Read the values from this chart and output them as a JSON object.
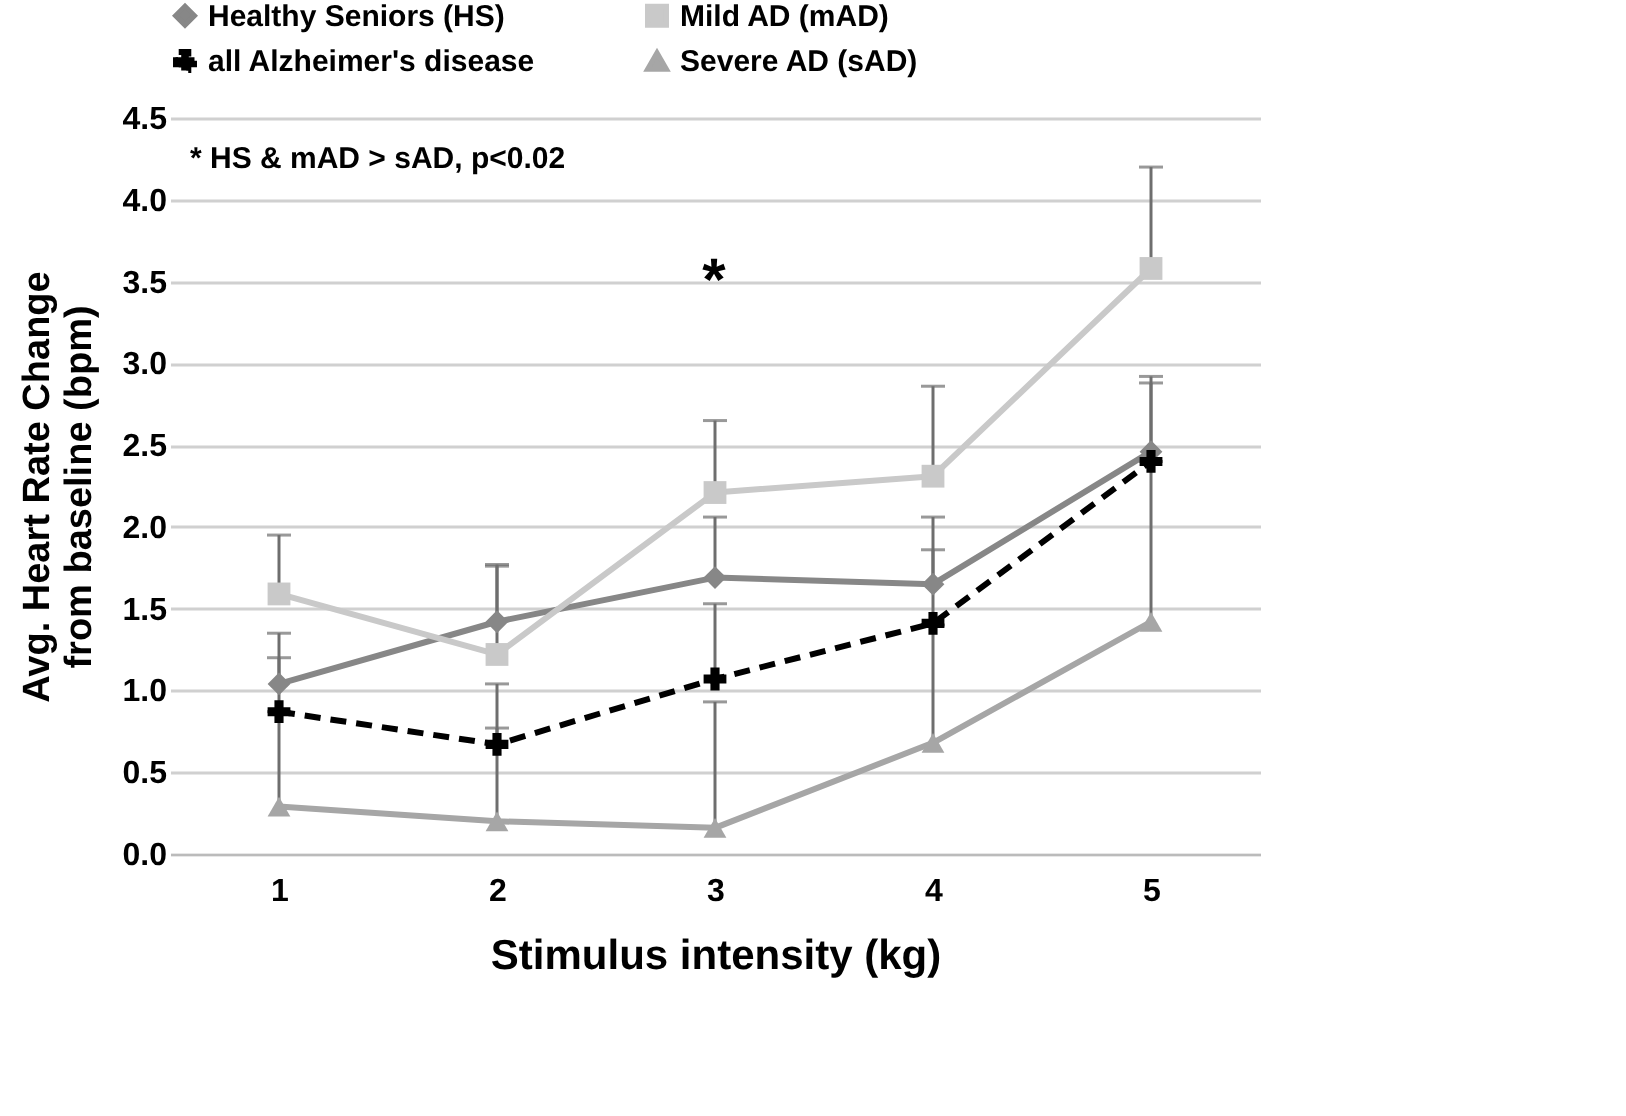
{
  "chart_data": {
    "type": "line",
    "xlabel": "Stimulus intensity (kg)",
    "ylabel": "Avg. Heart Rate Change\nfrom baseline (bpm)",
    "x": [
      1,
      2,
      3,
      4,
      5
    ],
    "xlim": [
      0.5,
      5.5
    ],
    "xticks": [
      1,
      2,
      3,
      4,
      5
    ],
    "ylim": [
      0,
      4.5
    ],
    "yticks": [
      {
        "value": 0,
        "label": "0.0"
      },
      0.5,
      {
        "value": 1,
        "label": "1.0"
      },
      1.5,
      {
        "value": 2,
        "label": "2.0"
      },
      2.5,
      {
        "value": 3,
        "label": "3.0"
      },
      3.5,
      {
        "value": 4,
        "label": "4.0"
      },
      4.5
    ],
    "grid": "y",
    "legend": "top",
    "series": [
      {
        "name": "Healthy Seniors (HS)",
        "color": "#878787",
        "marker": "diamond",
        "line_style": "solid",
        "values": [
          1.04,
          1.42,
          1.69,
          1.65,
          2.46
        ],
        "errors": [
          [
            1.04,
            1.35
          ],
          [
            1.42,
            1.77
          ],
          [
            1.69,
            2.06
          ],
          [
            1.65,
            2.06
          ],
          [
            2.46,
            2.92
          ]
        ]
      },
      {
        "name": "Mild AD (mAD)",
        "color": "#c9c9c9",
        "marker": "square",
        "line_style": "solid",
        "values": [
          1.59,
          1.22,
          2.21,
          2.31,
          3.58
        ],
        "errors": [
          [
            1.59,
            1.95
          ],
          [
            1.22,
            1.76
          ],
          [
            2.21,
            2.65
          ],
          [
            2.31,
            2.86
          ],
          [
            3.58,
            4.2
          ]
        ]
      },
      {
        "name": "all Alzheimer's disease",
        "color": "#000000",
        "marker": "cross",
        "line_style": "dashed",
        "values": [
          0.87,
          0.67,
          1.07,
          1.41,
          2.4
        ],
        "errors": [
          [
            0.87,
            1.2
          ],
          [
            0.67,
            1.04
          ],
          [
            1.07,
            1.53
          ],
          [
            1.41,
            1.86
          ],
          [
            2.4,
            2.88
          ]
        ]
      },
      {
        "name": "Severe AD (sAD)",
        "color": "#a6a6a6",
        "marker": "triangle",
        "line_style": "solid",
        "values": [
          0.29,
          0.2,
          0.16,
          0.68,
          1.42
        ],
        "errors": [
          [
            0.29,
            0.87
          ],
          [
            0.2,
            0.77
          ],
          [
            0.16,
            0.93
          ],
          [
            0.68,
            1.4
          ],
          [
            1.42,
            2.4
          ]
        ]
      }
    ],
    "annotations": [
      "* HS & mAD > sAD, p<0.02",
      "*"
    ]
  }
}
